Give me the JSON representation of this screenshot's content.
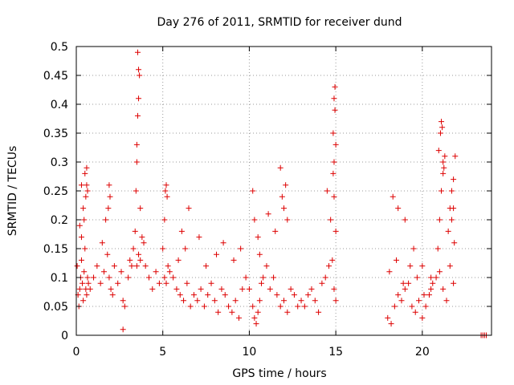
{
  "chart_data": {
    "type": "scatter",
    "title": "Day 276 of 2011, SRMTID for receiver dund",
    "xlabel": "GPS time / hours",
    "ylabel": "SRMTID / TECUs",
    "xlim": [
      0,
      24
    ],
    "ylim": [
      0,
      0.5
    ],
    "xticks": [
      0,
      5,
      10,
      15,
      20
    ],
    "xtick_labels": [
      "0",
      "5",
      "10",
      "15",
      "20"
    ],
    "yticks": [
      0,
      0.05,
      0.1,
      0.15,
      0.2,
      0.25,
      0.3,
      0.35,
      0.4,
      0.45,
      0.5
    ],
    "ytick_labels": [
      "0",
      "0.05",
      "0.1",
      "0.15",
      "0.2",
      "0.25",
      "0.3",
      "0.35",
      "0.4",
      "0.45",
      "0.5"
    ],
    "grid": true,
    "marker": "+",
    "color": "#dd0000",
    "series": [
      {
        "name": "SRMTID",
        "x": [
          0.05,
          0.1,
          0.15,
          0.2,
          0.25,
          0.3,
          0.35,
          0.4,
          0.45,
          0.5,
          0.55,
          0.6,
          0.65,
          0.7,
          0.2,
          0.3,
          0.4,
          0.5,
          0.55,
          0.6,
          0.3,
          0.45,
          0.6,
          0.65,
          0.8,
          1.0,
          1.2,
          1.4,
          1.6,
          1.8,
          1.9,
          2.0,
          2.1,
          1.5,
          1.7,
          1.85,
          1.9,
          1.95,
          2.2,
          2.4,
          2.6,
          2.7,
          2.8,
          3.0,
          3.1,
          3.2,
          2.7,
          3.3,
          3.4,
          3.45,
          3.5,
          3.5,
          3.55,
          3.6,
          3.6,
          3.55,
          3.65,
          3.7,
          3.8,
          3.9,
          4.0,
          4.2,
          4.4,
          4.6,
          4.8,
          3.5,
          3.6,
          3.7,
          5.0,
          5.1,
          5.15,
          5.2,
          5.25,
          5.3,
          5.1,
          5.2,
          5.4,
          5.6,
          5.8,
          6.0,
          6.2,
          6.4,
          6.6,
          6.8,
          7.0,
          7.2,
          7.4,
          7.6,
          7.8,
          8.0,
          8.2,
          8.4,
          8.6,
          8.8,
          9.0,
          9.2,
          9.4,
          9.6,
          9.8,
          6.5,
          6.1,
          6.3,
          5.9,
          7.1,
          7.5,
          8.1,
          8.5,
          9.1,
          9.5,
          10.0,
          10.2,
          10.3,
          10.4,
          10.5,
          10.6,
          10.7,
          10.8,
          11.0,
          11.2,
          11.4,
          11.6,
          11.8,
          12.0,
          12.2,
          12.4,
          12.6,
          12.8,
          13.0,
          10.2,
          10.3,
          10.5,
          10.6,
          11.1,
          11.5,
          11.8,
          11.9,
          12.0,
          12.1,
          12.2,
          13.2,
          13.4,
          13.6,
          13.8,
          14.0,
          14.2,
          14.4,
          14.6,
          14.8,
          14.9,
          15.0,
          14.5,
          14.7,
          14.85,
          14.9,
          14.95,
          15.0,
          14.9,
          14.95,
          14.85,
          14.9,
          15.0,
          18.0,
          18.2,
          18.4,
          18.6,
          18.8,
          19.0,
          19.2,
          19.4,
          19.6,
          19.8,
          20.0,
          20.2,
          20.4,
          20.6,
          20.8,
          21.0,
          21.2,
          21.4,
          21.6,
          21.8,
          18.3,
          18.6,
          19.0,
          19.5,
          20.0,
          20.5,
          20.9,
          21.0,
          21.1,
          21.2,
          21.3,
          21.5,
          21.6,
          21.7,
          21.8,
          21.9,
          20.95,
          21.05,
          21.1,
          21.15,
          21.2,
          21.25,
          21.7,
          21.8,
          21.85,
          18.1,
          18.5,
          18.9,
          19.3,
          19.7,
          20.1,
          20.5,
          23.4,
          23.5,
          23.6,
          23.7
        ],
        "y": [
          0.12,
          0.07,
          0.05,
          0.08,
          0.1,
          0.13,
          0.09,
          0.06,
          0.11,
          0.15,
          0.08,
          0.07,
          0.1,
          0.09,
          0.19,
          0.26,
          0.22,
          0.28,
          0.24,
          0.29,
          0.17,
          0.2,
          0.26,
          0.25,
          0.08,
          0.1,
          0.12,
          0.09,
          0.11,
          0.14,
          0.1,
          0.08,
          0.07,
          0.16,
          0.2,
          0.22,
          0.26,
          0.24,
          0.12,
          0.09,
          0.11,
          0.06,
          0.05,
          0.1,
          0.13,
          0.12,
          0.01,
          0.15,
          0.18,
          0.25,
          0.3,
          0.33,
          0.38,
          0.41,
          0.46,
          0.49,
          0.45,
          0.22,
          0.17,
          0.16,
          0.12,
          0.1,
          0.08,
          0.11,
          0.09,
          0.12,
          0.14,
          0.13,
          0.15,
          0.2,
          0.25,
          0.26,
          0.24,
          0.12,
          0.1,
          0.09,
          0.11,
          0.1,
          0.08,
          0.07,
          0.06,
          0.09,
          0.05,
          0.07,
          0.06,
          0.08,
          0.05,
          0.07,
          0.09,
          0.06,
          0.04,
          0.08,
          0.07,
          0.05,
          0.04,
          0.06,
          0.03,
          0.08,
          0.1,
          0.22,
          0.18,
          0.15,
          0.13,
          0.17,
          0.12,
          0.14,
          0.16,
          0.13,
          0.15,
          0.08,
          0.05,
          0.03,
          0.02,
          0.04,
          0.06,
          0.09,
          0.1,
          0.12,
          0.08,
          0.1,
          0.07,
          0.05,
          0.06,
          0.04,
          0.08,
          0.07,
          0.05,
          0.06,
          0.25,
          0.2,
          0.17,
          0.14,
          0.21,
          0.18,
          0.29,
          0.24,
          0.22,
          0.26,
          0.2,
          0.05,
          0.07,
          0.08,
          0.06,
          0.04,
          0.09,
          0.1,
          0.12,
          0.13,
          0.08,
          0.06,
          0.25,
          0.2,
          0.35,
          0.41,
          0.43,
          0.33,
          0.3,
          0.39,
          0.28,
          0.24,
          0.18,
          0.03,
          0.02,
          0.05,
          0.07,
          0.06,
          0.08,
          0.09,
          0.05,
          0.04,
          0.06,
          0.03,
          0.05,
          0.07,
          0.09,
          0.1,
          0.11,
          0.08,
          0.06,
          0.12,
          0.09,
          0.24,
          0.22,
          0.2,
          0.15,
          0.12,
          0.1,
          0.15,
          0.2,
          0.25,
          0.28,
          0.31,
          0.18,
          0.22,
          0.25,
          0.27,
          0.31,
          0.32,
          0.35,
          0.37,
          0.36,
          0.3,
          0.29,
          0.2,
          0.22,
          0.16,
          0.11,
          0.13,
          0.09,
          0.12,
          0.1,
          0.07,
          0.08,
          0.0,
          0.0,
          0.0,
          0.0
        ]
      }
    ]
  }
}
